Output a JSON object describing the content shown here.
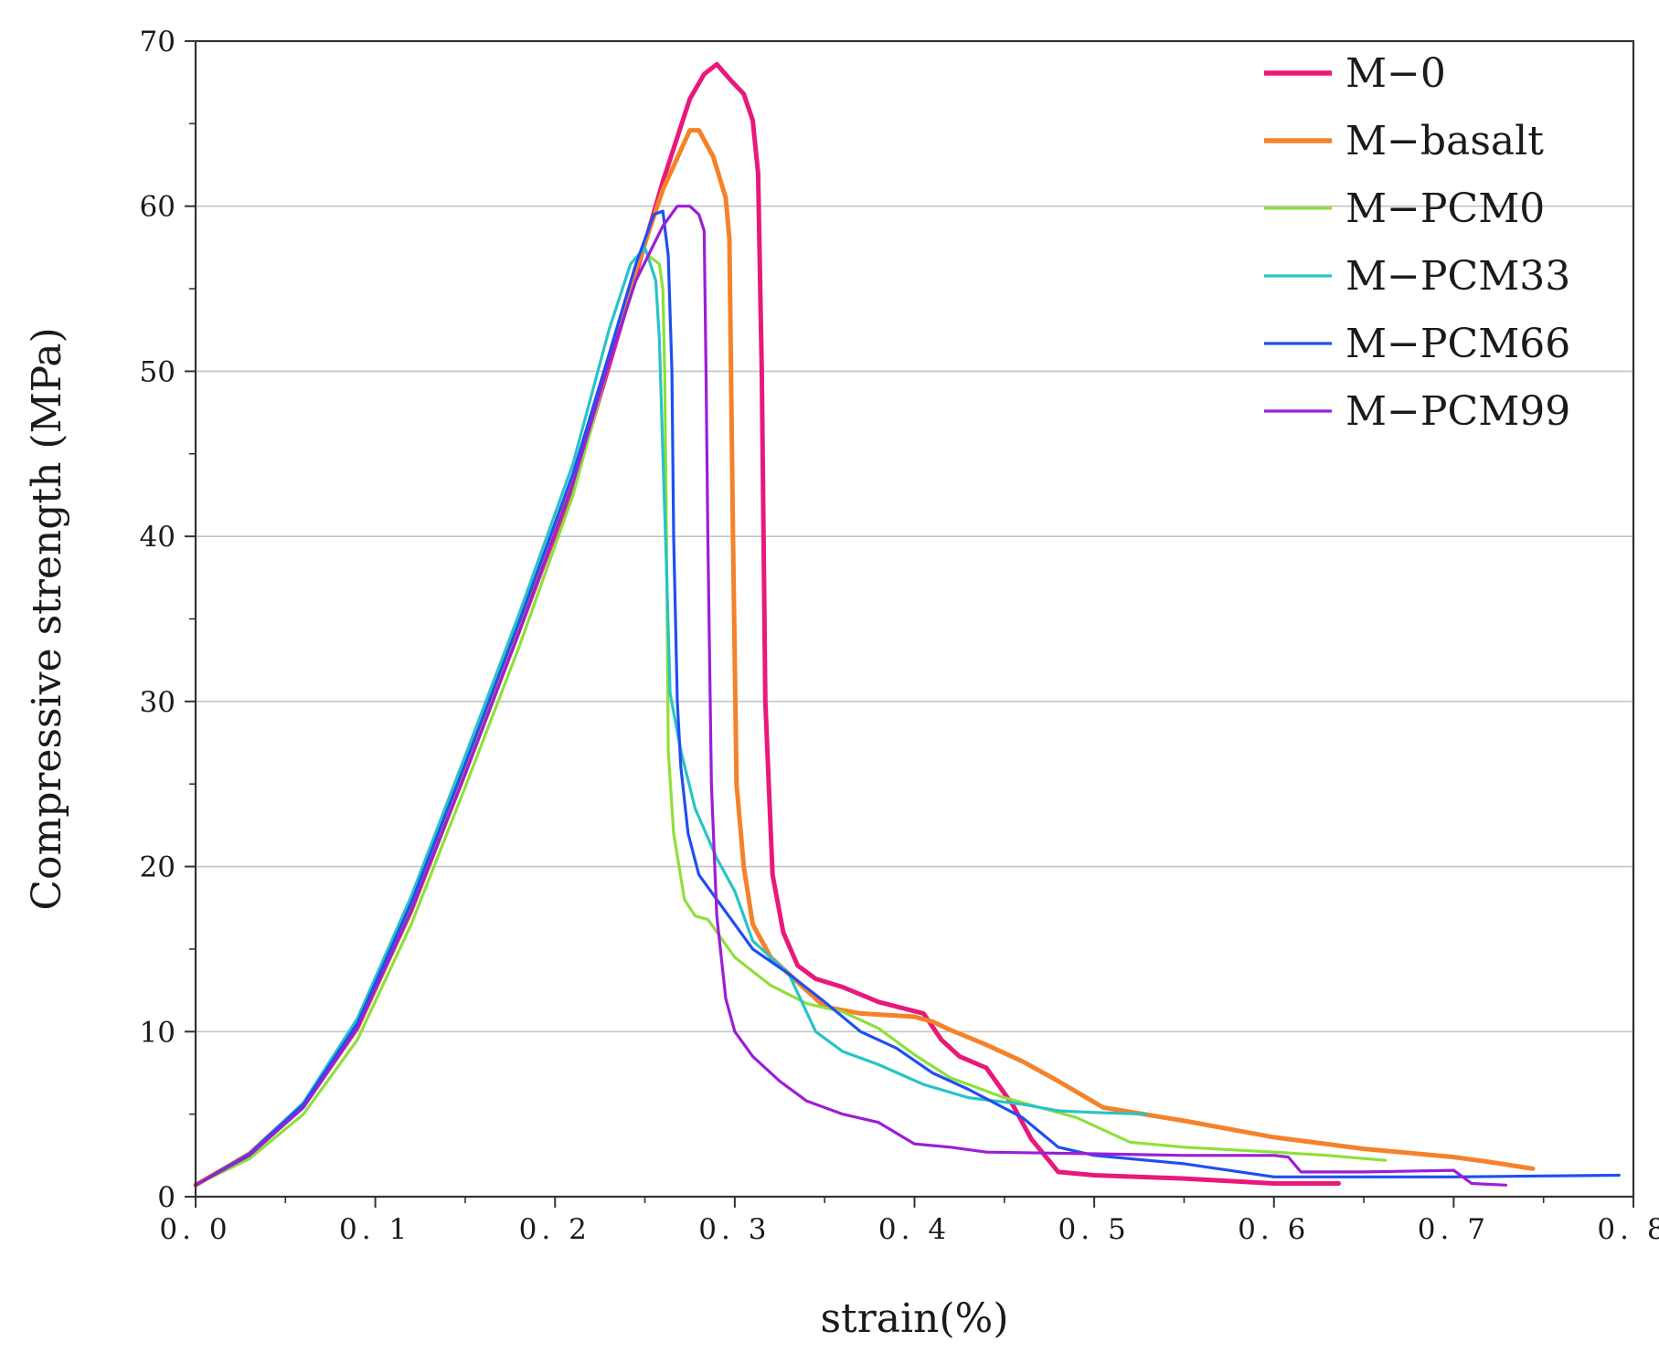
{
  "chart_data": {
    "type": "line",
    "xlabel": "strain(%)",
    "ylabel": "Compressive  strength (MPa)",
    "xlim": [
      0,
      0.8
    ],
    "ylim": [
      0,
      70
    ],
    "xticks": [
      0,
      0.1,
      0.2,
      0.3,
      0.4,
      0.5,
      0.6,
      0.7,
      0.8
    ],
    "xtick_labels": [
      "0. 0",
      "0. 1",
      "0. 2",
      "0. 3",
      "0. 4",
      "0. 5",
      "0. 6",
      "0. 7",
      "0. 8"
    ],
    "yticks": [
      0,
      10,
      20,
      30,
      40,
      50,
      60,
      70
    ],
    "ytick_labels": [
      "0",
      "10",
      "20",
      "30",
      "40",
      "50",
      "60",
      "70"
    ],
    "grid": "horizontal",
    "legend_position": "top-right",
    "series": [
      {
        "name": "M-0",
        "label": "M−0",
        "color": "#e8197a",
        "points": [
          [
            0,
            0.7
          ],
          [
            0.03,
            2.6
          ],
          [
            0.06,
            5.6
          ],
          [
            0.09,
            10.3
          ],
          [
            0.12,
            17.5
          ],
          [
            0.15,
            25.8
          ],
          [
            0.18,
            34.3
          ],
          [
            0.21,
            43
          ],
          [
            0.24,
            54
          ],
          [
            0.26,
            61.5
          ],
          [
            0.275,
            66.5
          ],
          [
            0.283,
            68
          ],
          [
            0.29,
            68.6
          ],
          [
            0.298,
            67.6
          ],
          [
            0.305,
            66.8
          ],
          [
            0.31,
            65.2
          ],
          [
            0.313,
            62
          ],
          [
            0.315,
            50
          ],
          [
            0.317,
            30
          ],
          [
            0.321,
            19.5
          ],
          [
            0.327,
            16
          ],
          [
            0.335,
            14
          ],
          [
            0.345,
            13.2
          ],
          [
            0.36,
            12.7
          ],
          [
            0.38,
            11.8
          ],
          [
            0.405,
            11.1
          ],
          [
            0.415,
            9.5
          ],
          [
            0.425,
            8.5
          ],
          [
            0.44,
            7.8
          ],
          [
            0.455,
            5.5
          ],
          [
            0.465,
            3.5
          ],
          [
            0.48,
            1.5
          ],
          [
            0.5,
            1.3
          ],
          [
            0.55,
            1.1
          ],
          [
            0.6,
            0.8
          ],
          [
            0.636,
            0.8
          ]
        ]
      },
      {
        "name": "M-basalt",
        "label": "M−basalt",
        "color": "#f58229",
        "points": [
          [
            0,
            0.7
          ],
          [
            0.03,
            2.6
          ],
          [
            0.06,
            5.5
          ],
          [
            0.09,
            10.2
          ],
          [
            0.12,
            17.3
          ],
          [
            0.15,
            25.7
          ],
          [
            0.18,
            34.3
          ],
          [
            0.21,
            43.3
          ],
          [
            0.24,
            54.5
          ],
          [
            0.26,
            61
          ],
          [
            0.275,
            64.6
          ],
          [
            0.28,
            64.6
          ],
          [
            0.288,
            63
          ],
          [
            0.295,
            60.5
          ],
          [
            0.297,
            58
          ],
          [
            0.299,
            40
          ],
          [
            0.301,
            25
          ],
          [
            0.305,
            20
          ],
          [
            0.31,
            16.5
          ],
          [
            0.32,
            14.5
          ],
          [
            0.335,
            13
          ],
          [
            0.35,
            11.5
          ],
          [
            0.37,
            11.1
          ],
          [
            0.4,
            10.9
          ],
          [
            0.41,
            10.6
          ],
          [
            0.42,
            10.1
          ],
          [
            0.44,
            9.2
          ],
          [
            0.46,
            8.2
          ],
          [
            0.48,
            7
          ],
          [
            0.505,
            5.4
          ],
          [
            0.55,
            4.6
          ],
          [
            0.6,
            3.6
          ],
          [
            0.65,
            2.9
          ],
          [
            0.7,
            2.4
          ],
          [
            0.72,
            2.1
          ],
          [
            0.744,
            1.7
          ]
        ]
      },
      {
        "name": "M-PCM0",
        "label": "M−PCM0",
        "color": "#8ee03a",
        "points": [
          [
            0,
            0.7
          ],
          [
            0.03,
            2.3
          ],
          [
            0.06,
            5
          ],
          [
            0.09,
            9.5
          ],
          [
            0.12,
            16.5
          ],
          [
            0.15,
            24.8
          ],
          [
            0.18,
            33.3
          ],
          [
            0.21,
            42.5
          ],
          [
            0.23,
            50.5
          ],
          [
            0.245,
            55.5
          ],
          [
            0.252,
            57
          ],
          [
            0.258,
            56.5
          ],
          [
            0.26,
            55
          ],
          [
            0.261,
            50
          ],
          [
            0.262,
            40
          ],
          [
            0.263,
            27
          ],
          [
            0.266,
            22
          ],
          [
            0.272,
            18
          ],
          [
            0.278,
            17
          ],
          [
            0.285,
            16.8
          ],
          [
            0.3,
            14.5
          ],
          [
            0.32,
            12.8
          ],
          [
            0.34,
            11.7
          ],
          [
            0.36,
            11.2
          ],
          [
            0.38,
            10.2
          ],
          [
            0.4,
            8.6
          ],
          [
            0.42,
            7.2
          ],
          [
            0.45,
            6
          ],
          [
            0.49,
            4.8
          ],
          [
            0.52,
            3.3
          ],
          [
            0.55,
            3
          ],
          [
            0.6,
            2.7
          ],
          [
            0.63,
            2.5
          ],
          [
            0.662,
            2.2
          ]
        ]
      },
      {
        "name": "M-PCM33",
        "label": "M−PCM33",
        "color": "#28c3c7",
        "points": [
          [
            0,
            0.7
          ],
          [
            0.03,
            2.6
          ],
          [
            0.06,
            5.7
          ],
          [
            0.09,
            10.8
          ],
          [
            0.12,
            18.2
          ],
          [
            0.15,
            26.7
          ],
          [
            0.18,
            35.3
          ],
          [
            0.21,
            44.4
          ],
          [
            0.23,
            52.5
          ],
          [
            0.242,
            56.5
          ],
          [
            0.25,
            57.5
          ],
          [
            0.256,
            55.5
          ],
          [
            0.258,
            52
          ],
          [
            0.26,
            45
          ],
          [
            0.262,
            38
          ],
          [
            0.264,
            30.5
          ],
          [
            0.27,
            27
          ],
          [
            0.278,
            23.5
          ],
          [
            0.29,
            20.5
          ],
          [
            0.3,
            18.5
          ],
          [
            0.31,
            15.5
          ],
          [
            0.33,
            13.5
          ],
          [
            0.345,
            10
          ],
          [
            0.36,
            8.8
          ],
          [
            0.38,
            8
          ],
          [
            0.405,
            6.8
          ],
          [
            0.43,
            6
          ],
          [
            0.46,
            5.6
          ],
          [
            0.48,
            5.2
          ],
          [
            0.5,
            5.1
          ],
          [
            0.529,
            5
          ]
        ]
      },
      {
        "name": "M-PCM66",
        "label": "M−PCM66",
        "color": "#1f4ff0",
        "points": [
          [
            0,
            0.7
          ],
          [
            0.03,
            2.6
          ],
          [
            0.06,
            5.6
          ],
          [
            0.09,
            10.5
          ],
          [
            0.12,
            17.8
          ],
          [
            0.15,
            26.2
          ],
          [
            0.18,
            34.8
          ],
          [
            0.21,
            43.8
          ],
          [
            0.23,
            51
          ],
          [
            0.245,
            56.5
          ],
          [
            0.255,
            59.5
          ],
          [
            0.26,
            59.7
          ],
          [
            0.263,
            57
          ],
          [
            0.265,
            50
          ],
          [
            0.266,
            40
          ],
          [
            0.268,
            30
          ],
          [
            0.27,
            26
          ],
          [
            0.274,
            22
          ],
          [
            0.28,
            19.5
          ],
          [
            0.29,
            18
          ],
          [
            0.3,
            16.5
          ],
          [
            0.31,
            15
          ],
          [
            0.33,
            13.5
          ],
          [
            0.35,
            11.8
          ],
          [
            0.37,
            10
          ],
          [
            0.39,
            9
          ],
          [
            0.41,
            7.5
          ],
          [
            0.43,
            6.5
          ],
          [
            0.46,
            4.8
          ],
          [
            0.48,
            3
          ],
          [
            0.5,
            2.5
          ],
          [
            0.55,
            2
          ],
          [
            0.6,
            1.2
          ],
          [
            0.7,
            1.2
          ],
          [
            0.792,
            1.3
          ]
        ]
      },
      {
        "name": "M-PCM99",
        "label": "M−PCM99",
        "color": "#9b1ed6",
        "points": [
          [
            0,
            0.7
          ],
          [
            0.03,
            2.5
          ],
          [
            0.06,
            5.4
          ],
          [
            0.09,
            10.2
          ],
          [
            0.12,
            17.3
          ],
          [
            0.15,
            25.6
          ],
          [
            0.18,
            34.2
          ],
          [
            0.21,
            43.2
          ],
          [
            0.23,
            50.5
          ],
          [
            0.245,
            55.5
          ],
          [
            0.26,
            58.8
          ],
          [
            0.268,
            60
          ],
          [
            0.275,
            60
          ],
          [
            0.28,
            59.5
          ],
          [
            0.283,
            58.5
          ],
          [
            0.284,
            50
          ],
          [
            0.285,
            40
          ],
          [
            0.287,
            25
          ],
          [
            0.29,
            17
          ],
          [
            0.295,
            12
          ],
          [
            0.3,
            10
          ],
          [
            0.31,
            8.5
          ],
          [
            0.325,
            7
          ],
          [
            0.34,
            5.8
          ],
          [
            0.36,
            5
          ],
          [
            0.38,
            4.5
          ],
          [
            0.4,
            3.2
          ],
          [
            0.42,
            3
          ],
          [
            0.44,
            2.7
          ],
          [
            0.5,
            2.6
          ],
          [
            0.55,
            2.5
          ],
          [
            0.6,
            2.5
          ],
          [
            0.608,
            2.4
          ],
          [
            0.615,
            1.5
          ],
          [
            0.65,
            1.5
          ],
          [
            0.7,
            1.6
          ],
          [
            0.71,
            0.8
          ],
          [
            0.729,
            0.7
          ]
        ]
      }
    ]
  }
}
